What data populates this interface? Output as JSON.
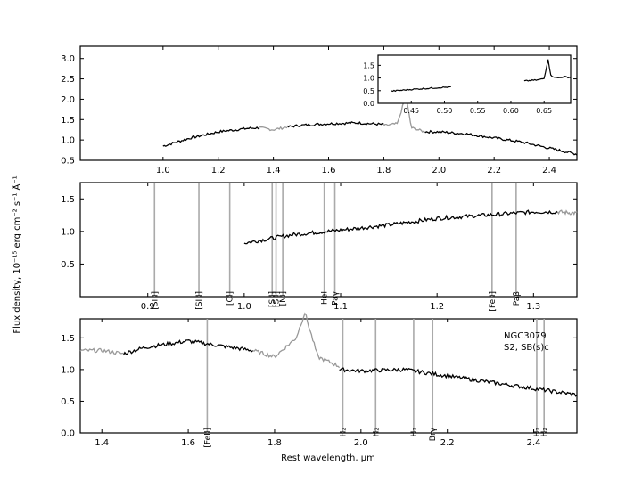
{
  "chart_data": [
    {
      "type": "line",
      "panel": "top",
      "xlim": [
        0.7,
        2.5
      ],
      "ylim": [
        0.5,
        3.3
      ],
      "xticks": [
        "1.0",
        "1.2",
        "1.4",
        "1.6",
        "1.8",
        "2.0",
        "2.2",
        "2.4"
      ],
      "yticks": [
        "0.5",
        "1.0",
        "1.5",
        "2.0",
        "2.5",
        "3.0"
      ],
      "series": [
        {
          "color": "#000000",
          "x": [
            1.0,
            1.1,
            1.2,
            1.3,
            1.35
          ],
          "y": [
            0.85,
            1.05,
            1.2,
            1.28,
            1.3
          ]
        },
        {
          "color": "#999999",
          "x": [
            1.35,
            1.4,
            1.45
          ],
          "y": [
            1.3,
            1.25,
            1.32
          ]
        },
        {
          "color": "#000000",
          "x": [
            1.45,
            1.5,
            1.6,
            1.7,
            1.8
          ],
          "y": [
            1.32,
            1.36,
            1.4,
            1.42,
            1.38
          ]
        },
        {
          "color": "#999999",
          "x": [
            1.8,
            1.85,
            1.88,
            1.9,
            1.95
          ],
          "y": [
            1.35,
            1.4,
            2.1,
            1.3,
            1.2
          ]
        },
        {
          "color": "#000000",
          "x": [
            1.95,
            2.0,
            2.1,
            2.2,
            2.3,
            2.4,
            2.5
          ],
          "y": [
            1.2,
            1.2,
            1.15,
            1.05,
            0.95,
            0.8,
            0.65
          ]
        }
      ],
      "inset": {
        "xlim": [
          0.4,
          0.69
        ],
        "ylim": [
          0.0,
          1.9
        ],
        "xticks": [
          "0.45",
          "0.50",
          "0.55",
          "0.60",
          "0.65"
        ],
        "yticks": [
          "0.0",
          "0.5",
          "1.0",
          "1.5"
        ],
        "series": [
          {
            "color": "#000000",
            "x": [
              0.42,
              0.45,
              0.48,
              0.51
            ],
            "y": [
              0.48,
              0.55,
              0.6,
              0.65
            ]
          },
          {
            "color": "#000000",
            "x": [
              0.62,
              0.64,
              0.65,
              0.656,
              0.66,
              0.67,
              0.68,
              0.69
            ],
            "y": [
              0.88,
              0.92,
              0.98,
              1.75,
              1.1,
              1.0,
              1.05,
              1.02
            ]
          }
        ]
      }
    },
    {
      "type": "line",
      "panel": "middle",
      "xlim": [
        0.83,
        1.345
      ],
      "ylim": [
        0.0,
        1.75
      ],
      "xticks": [
        "0.9",
        "1.0",
        "1.1",
        "1.2",
        "1.3"
      ],
      "yticks": [
        "0.5",
        "1.0",
        "1.5"
      ],
      "series": [
        {
          "color": "#000000",
          "x": [
            1.0,
            1.05,
            1.1,
            1.15,
            1.2,
            1.25,
            1.3,
            1.325
          ],
          "y": [
            0.82,
            0.95,
            1.02,
            1.1,
            1.2,
            1.25,
            1.3,
            1.3
          ]
        },
        {
          "color": "#999999",
          "x": [
            1.325,
            1.345
          ],
          "y": [
            1.3,
            1.28
          ]
        }
      ],
      "lines": [
        {
          "x": 0.907,
          "label": "[SIII]"
        },
        {
          "x": 0.953,
          "label": "[SIII]"
        },
        {
          "x": 0.985,
          "label": "[CI]"
        },
        {
          "x": 1.029,
          "label": "[SII]"
        },
        {
          "x": 1.033,
          "label": "[SII]"
        },
        {
          "x": 1.04,
          "label": "[NI]"
        },
        {
          "x": 1.083,
          "label": "HeI"
        },
        {
          "x": 1.094,
          "label": "Paγ"
        },
        {
          "x": 1.257,
          "label": "[FeII]"
        },
        {
          "x": 1.282,
          "label": "Paβ"
        }
      ]
    },
    {
      "type": "line",
      "panel": "bottom",
      "xlim": [
        1.35,
        2.5
      ],
      "ylim": [
        0.0,
        1.8
      ],
      "xticks": [
        "1.4",
        "1.6",
        "1.8",
        "2.0",
        "2.2",
        "2.4"
      ],
      "yticks": [
        "0.0",
        "0.5",
        "1.0",
        "1.5"
      ],
      "xlabel": "Rest wavelength, μm",
      "series": [
        {
          "color": "#999999",
          "x": [
            1.35,
            1.4,
            1.45
          ],
          "y": [
            1.3,
            1.3,
            1.25
          ]
        },
        {
          "color": "#000000",
          "x": [
            1.45,
            1.5,
            1.6,
            1.7,
            1.75
          ],
          "y": [
            1.25,
            1.35,
            1.45,
            1.35,
            1.3
          ]
        },
        {
          "color": "#999999",
          "x": [
            1.75,
            1.8,
            1.85,
            1.87,
            1.9,
            1.95
          ],
          "y": [
            1.3,
            1.2,
            1.5,
            1.9,
            1.2,
            1.05
          ]
        },
        {
          "color": "#000000",
          "x": [
            1.95,
            2.0,
            2.1,
            2.2,
            2.3,
            2.4,
            2.5
          ],
          "y": [
            1.0,
            0.98,
            1.0,
            0.9,
            0.8,
            0.7,
            0.6
          ]
        }
      ],
      "lines": [
        {
          "x": 1.644,
          "label": "[FeII]"
        },
        {
          "x": 1.958,
          "label": "H₂"
        },
        {
          "x": 2.034,
          "label": "H₂"
        },
        {
          "x": 2.122,
          "label": "H₂"
        },
        {
          "x": 2.166,
          "label": "Brγ"
        },
        {
          "x": 2.407,
          "label": "H₂"
        },
        {
          "x": 2.424,
          "label": "H₂"
        }
      ],
      "annotations": [
        "NGC3079",
        "S2,  SB(s)c"
      ]
    }
  ],
  "ylabel": "Flux density, 10⁻¹⁵ erg cm⁻² s⁻¹ Å⁻¹"
}
